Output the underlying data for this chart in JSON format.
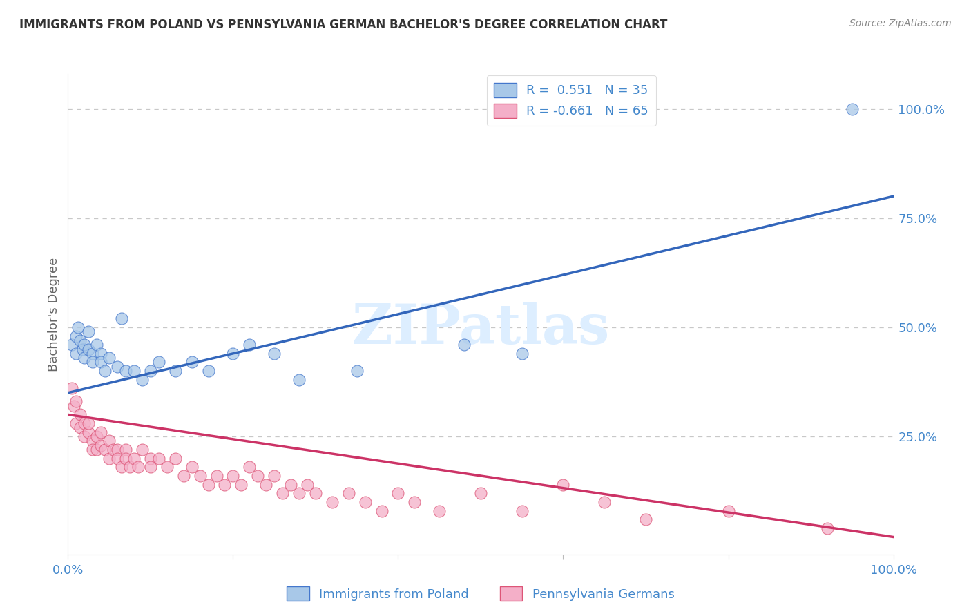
{
  "title": "IMMIGRANTS FROM POLAND VS PENNSYLVANIA GERMAN BACHELOR'S DEGREE CORRELATION CHART",
  "source_text": "Source: ZipAtlas.com",
  "ylabel": "Bachelor's Degree",
  "ytick_labels": [
    "25.0%",
    "50.0%",
    "75.0%",
    "100.0%"
  ],
  "ytick_values": [
    0.25,
    0.5,
    0.75,
    1.0
  ],
  "xlim": [
    0.0,
    1.0
  ],
  "ylim": [
    -0.02,
    1.08
  ],
  "legend_label_blue": "R =  0.551   N = 35",
  "legend_label_pink": "R = -0.661   N = 65",
  "blue_series_label": "Immigrants from Poland",
  "pink_series_label": "Pennsylvania Germans",
  "blue_color": "#a8c8e8",
  "pink_color": "#f4afc8",
  "blue_edge_color": "#4477cc",
  "pink_edge_color": "#dd5577",
  "blue_line_color": "#3366bb",
  "pink_line_color": "#cc3366",
  "background_color": "#ffffff",
  "grid_color": "#c8c8c8",
  "title_color": "#333333",
  "axis_label_color": "#4488cc",
  "source_color": "#888888",
  "ylabel_color": "#666666",
  "watermark_text": "ZIPatlas",
  "watermark_color": "#ddeeff",
  "blue_trend_x0": 0.0,
  "blue_trend_y0": 0.35,
  "blue_trend_x1": 1.0,
  "blue_trend_y1": 0.8,
  "pink_trend_x0": 0.0,
  "pink_trend_y0": 0.3,
  "pink_trend_x1": 1.0,
  "pink_trend_y1": 0.02,
  "blue_x": [
    0.005,
    0.01,
    0.01,
    0.012,
    0.015,
    0.018,
    0.02,
    0.02,
    0.025,
    0.025,
    0.03,
    0.03,
    0.035,
    0.04,
    0.04,
    0.045,
    0.05,
    0.06,
    0.065,
    0.07,
    0.08,
    0.09,
    0.1,
    0.11,
    0.13,
    0.15,
    0.17,
    0.2,
    0.22,
    0.25,
    0.28,
    0.35,
    0.48,
    0.55,
    0.95
  ],
  "blue_y": [
    0.46,
    0.48,
    0.44,
    0.5,
    0.47,
    0.45,
    0.43,
    0.46,
    0.49,
    0.45,
    0.44,
    0.42,
    0.46,
    0.44,
    0.42,
    0.4,
    0.43,
    0.41,
    0.52,
    0.4,
    0.4,
    0.38,
    0.4,
    0.42,
    0.4,
    0.42,
    0.4,
    0.44,
    0.46,
    0.44,
    0.38,
    0.4,
    0.46,
    0.44,
    1.0
  ],
  "pink_x": [
    0.005,
    0.007,
    0.01,
    0.01,
    0.015,
    0.015,
    0.02,
    0.02,
    0.025,
    0.025,
    0.03,
    0.03,
    0.035,
    0.035,
    0.04,
    0.04,
    0.045,
    0.05,
    0.05,
    0.055,
    0.06,
    0.06,
    0.065,
    0.07,
    0.07,
    0.075,
    0.08,
    0.085,
    0.09,
    0.1,
    0.1,
    0.11,
    0.12,
    0.13,
    0.14,
    0.15,
    0.16,
    0.17,
    0.18,
    0.19,
    0.2,
    0.21,
    0.22,
    0.23,
    0.24,
    0.25,
    0.26,
    0.27,
    0.28,
    0.29,
    0.3,
    0.32,
    0.34,
    0.36,
    0.38,
    0.4,
    0.42,
    0.45,
    0.5,
    0.55,
    0.6,
    0.65,
    0.7,
    0.8,
    0.92
  ],
  "pink_y": [
    0.36,
    0.32,
    0.33,
    0.28,
    0.3,
    0.27,
    0.28,
    0.25,
    0.26,
    0.28,
    0.24,
    0.22,
    0.25,
    0.22,
    0.26,
    0.23,
    0.22,
    0.24,
    0.2,
    0.22,
    0.22,
    0.2,
    0.18,
    0.22,
    0.2,
    0.18,
    0.2,
    0.18,
    0.22,
    0.2,
    0.18,
    0.2,
    0.18,
    0.2,
    0.16,
    0.18,
    0.16,
    0.14,
    0.16,
    0.14,
    0.16,
    0.14,
    0.18,
    0.16,
    0.14,
    0.16,
    0.12,
    0.14,
    0.12,
    0.14,
    0.12,
    0.1,
    0.12,
    0.1,
    0.08,
    0.12,
    0.1,
    0.08,
    0.12,
    0.08,
    0.14,
    0.1,
    0.06,
    0.08,
    0.04
  ]
}
